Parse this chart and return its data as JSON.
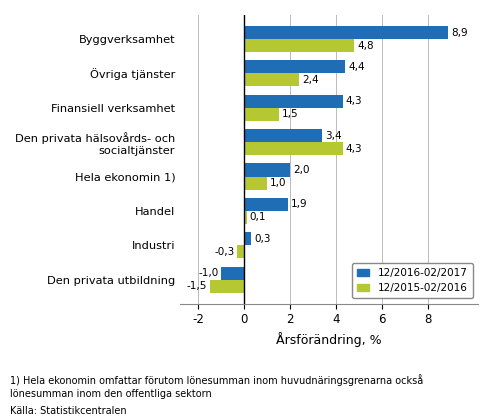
{
  "categories": [
    "Den privata utbildning",
    "Industri",
    "Handel",
    "Hela ekonomin 1)",
    "Den privata hälsovårds- och\nsocialtjänster",
    "Finansiell verksamhet",
    "Övriga tjänster",
    "Byggverksamhet"
  ],
  "series1_label": "12/2016-02/2017",
  "series2_label": "12/2015-02/2016",
  "series1_values": [
    -1.0,
    0.3,
    1.9,
    2.0,
    3.4,
    4.3,
    4.4,
    8.9
  ],
  "series2_values": [
    -1.5,
    -0.3,
    0.1,
    1.0,
    4.3,
    1.5,
    2.4,
    4.8
  ],
  "color1": "#1f6eb5",
  "color2": "#b5c832",
  "xlabel": "Årsförändring, %",
  "xlim": [
    -2.8,
    10.2
  ],
  "xticks": [
    -2,
    0,
    2,
    4,
    6,
    8
  ],
  "xtick_labels": [
    "-2",
    "0",
    "2",
    "4",
    "6",
    "8"
  ],
  "footnote1": "1) Hela ekonomin omfattar förutom lönesumman inom huvudnäringsgrenarna också",
  "footnote2": "lönesumman inom den offentliga sektorn",
  "source": "Källa: Statistikcentralen",
  "bar_height": 0.38,
  "grid_color": "#bbbbbb",
  "spine_color": "#888888"
}
